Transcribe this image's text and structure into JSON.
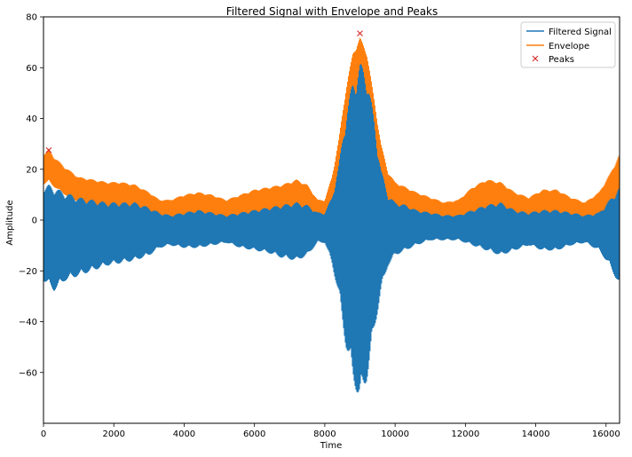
{
  "chart_data": {
    "type": "line",
    "title": "Filtered Signal with Envelope and Peaks",
    "xlabel": "Time",
    "ylabel": "Amplitude",
    "xlim": [
      0,
      16384
    ],
    "ylim": [
      -80,
      80
    ],
    "grid": false,
    "legend_position": "top-right",
    "x_ticks": [
      0,
      2000,
      4000,
      6000,
      8000,
      10000,
      12000,
      14000,
      16000
    ],
    "x_tick_labels": [
      "0",
      "2000",
      "4000",
      "6000",
      "8000",
      "10000",
      "12000",
      "14000",
      "16000"
    ],
    "y_ticks": [
      -60,
      -40,
      -20,
      0,
      20,
      40,
      60,
      80
    ],
    "y_tick_labels": [
      "−60",
      "−40",
      "−20",
      "0",
      "20",
      "40",
      "60",
      "80"
    ],
    "legend": [
      "Filtered Signal",
      "Envelope",
      "Peaks"
    ],
    "colors": {
      "filtered_signal": "#1f77b4",
      "envelope": "#ff7f0e",
      "peaks": "#d62728"
    },
    "series": [
      {
        "name": "Filtered Signal",
        "kind": "oscillating-band",
        "x": [
          0,
          150,
          300,
          600,
          1000,
          1400,
          1800,
          2200,
          2600,
          3000,
          3300,
          3600,
          4000,
          4400,
          4800,
          5200,
          5600,
          6000,
          6400,
          6800,
          7200,
          7500,
          7800,
          8000,
          8200,
          8400,
          8600,
          8800,
          9000,
          9200,
          9400,
          9600,
          9800,
          10000,
          10300,
          10600,
          11000,
          11400,
          11800,
          12200,
          12600,
          13000,
          13400,
          13800,
          14200,
          14600,
          15000,
          15400,
          15800,
          16100,
          16384
        ],
        "upper": [
          13,
          14,
          13,
          11,
          9,
          8,
          7,
          7,
          7,
          5,
          3,
          2,
          3,
          4,
          3,
          2,
          3,
          4,
          5,
          6,
          7,
          6,
          3,
          3,
          9,
          22,
          42,
          55,
          62,
          58,
          40,
          20,
          10,
          7,
          6,
          4,
          3,
          2,
          2,
          4,
          6,
          7,
          4,
          3,
          4,
          4,
          3,
          2,
          3,
          8,
          13
        ],
        "lower": [
          -24,
          -26,
          -28,
          -24,
          -22,
          -20,
          -18,
          -17,
          -16,
          -14,
          -11,
          -10,
          -11,
          -11,
          -10,
          -9,
          -11,
          -12,
          -13,
          -15,
          -16,
          -14,
          -9,
          -9,
          -17,
          -30,
          -50,
          -63,
          -72,
          -63,
          -45,
          -28,
          -18,
          -14,
          -12,
          -10,
          -8,
          -8,
          -8,
          -10,
          -12,
          -14,
          -12,
          -10,
          -12,
          -12,
          -10,
          -9,
          -12,
          -18,
          -26
        ]
      },
      {
        "name": "Envelope",
        "kind": "oscillating-band",
        "x": [
          0,
          150,
          300,
          600,
          1000,
          1400,
          1800,
          2200,
          2600,
          3000,
          3300,
          3600,
          4000,
          4400,
          4800,
          5200,
          5600,
          6000,
          6400,
          6800,
          7200,
          7500,
          7800,
          8000,
          8200,
          8400,
          8600,
          8800,
          9000,
          9200,
          9400,
          9600,
          9800,
          10000,
          10300,
          10600,
          11000,
          11400,
          11800,
          12200,
          12600,
          13000,
          13400,
          13800,
          14200,
          14600,
          15000,
          15400,
          15800,
          16100,
          16384
        ],
        "upper": [
          26,
          28,
          25,
          21,
          17,
          16,
          15,
          15,
          14,
          11,
          8,
          8,
          10,
          11,
          10,
          8,
          10,
          12,
          13,
          14,
          16,
          14,
          8,
          8,
          17,
          32,
          52,
          66,
          72,
          66,
          48,
          30,
          19,
          15,
          13,
          11,
          9,
          7,
          8,
          13,
          16,
          15,
          11,
          9,
          12,
          12,
          9,
          7,
          11,
          18,
          26
        ],
        "lower": [
          14,
          15,
          13,
          10,
          7,
          6,
          5,
          5,
          4,
          3,
          2,
          1,
          1,
          2,
          1,
          1,
          1,
          2,
          2,
          3,
          3,
          3,
          1,
          1,
          4,
          12,
          28,
          40,
          48,
          42,
          30,
          14,
          6,
          4,
          3,
          2,
          1,
          1,
          1,
          2,
          3,
          4,
          2,
          1,
          2,
          2,
          1,
          1,
          2,
          5,
          9
        ]
      },
      {
        "name": "Peaks",
        "kind": "markers",
        "marker": "x",
        "points": [
          {
            "x": 150,
            "y": 27.5
          },
          {
            "x": 9000,
            "y": 73.5
          }
        ]
      }
    ]
  }
}
